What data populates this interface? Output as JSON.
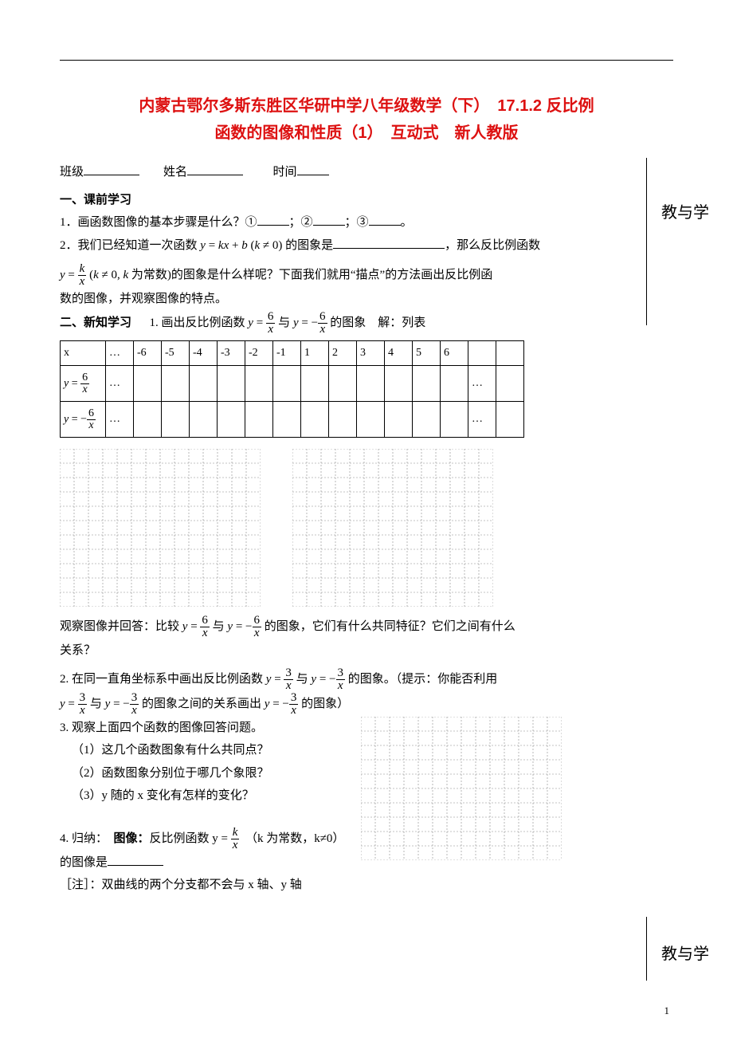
{
  "colors": {
    "title": "#dd1111",
    "text": "#000000",
    "grid_dash": "#888888",
    "rule": "#000000",
    "background": "#ffffff"
  },
  "title_line1": "内蒙古鄂尔多斯东胜区华研中学八年级数学（下）　17.1.2 反比例",
  "title_line2": "函数的图像和性质（1）　互动式　新人教版",
  "title_fontsize": 20,
  "form": {
    "class_label": "班级",
    "name_label": "姓名",
    "time_label": "时间"
  },
  "side_label": "教与学",
  "sec1": {
    "heading": "一、课前学习",
    "q1_prefix": "1．画函数图像的基本步骤是什么？①",
    "q1_sep2": "；②",
    "q1_sep3": "；③",
    "q1_end": "。",
    "q2_a": "2．我们已经知道一次函数 ",
    "q2_eq": "y = kx + b (k ≠ 0)",
    "q2_b": " 的图象是",
    "q2_c": "，那么反比例函数",
    "q2_line2a": "的图象是什么样呢？下面我们就用“描点”的方法画出反比例函",
    "q2_cond": "(k ≠ 0, k 为常数)",
    "q2_line3": "数的图像，并观察图像的特点。"
  },
  "sec2": {
    "heading": "二、新知学习",
    "intro_a": "1. 画出反比例函数 ",
    "intro_b": " 与 ",
    "intro_c": " 的图象　解：列表",
    "table": {
      "head_x": "x",
      "dots": "…",
      "xvals": [
        "-6",
        "-5",
        "-4",
        "-3",
        "-2",
        "-1",
        "1",
        "2",
        "3",
        "4",
        "5",
        "6"
      ],
      "row2_label_tex": "y = 6 / x",
      "row3_label_tex": "y = −6 / x"
    },
    "grid": {
      "cols": 14,
      "rows": 11,
      "cell": 18,
      "stroke": "#888888",
      "dash": "2 2"
    },
    "observe_a": "观察图像并回答：比较 ",
    "observe_b": " 与 ",
    "observe_c": " 的图象，它们有什么共同特征？它们之间有什么",
    "observe_d": "关系？",
    "q2_a": "2. 在同一直角坐标系中画出反比例函数 ",
    "q2_b": " 与 ",
    "q2_c": " 的图象。（提示：你能否利用",
    "q2_line2_a": " 与 ",
    "q2_line2_b": " 的图象之间的关系画出 ",
    "q2_line2_c": " 的图象）",
    "q3_intro": "3. 观察上面四个函数的图像回答问题。",
    "q3_1": "（1）这几个函数图象有什么共同点？",
    "q3_2": "（2）函数图象分别位于哪几个象限？",
    "q3_3": "（3）y 随的 x 变化有怎样的变化？",
    "q3_grid": {
      "cols": 14,
      "rows": 10,
      "cell": 18
    },
    "q4_a": "4. 归纳：　",
    "q4_b_bold": "图像：",
    "q4_c": "反比例函数 ",
    "q4_d": "（k 为常数，k≠0）的图像是",
    "q4_note": "［注］：双曲线的两个分支都不会与 x 轴、y 轴"
  },
  "page_number": "1"
}
